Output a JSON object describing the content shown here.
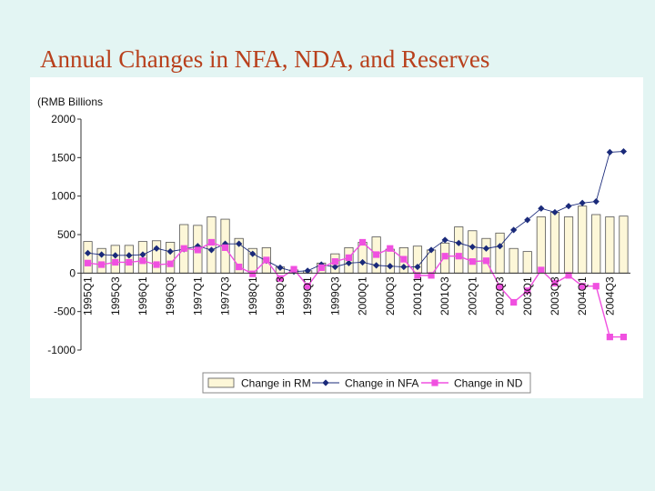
{
  "slide": {
    "title": "Annual Changes in NFA, NDA, and Reserves"
  },
  "colors": {
    "bar_fill": "#fdf7d8",
    "bar_stroke": "#555555",
    "nfa": "#1a2a7a",
    "nda": "#f050e0",
    "title": "#b8401c"
  },
  "chart_data": {
    "type": "bar",
    "unit_label": "(RMB Billions",
    "ylim": [
      -1000,
      2000
    ],
    "yticks": [
      2000,
      1500,
      1000,
      500,
      0,
      -500,
      -1000
    ],
    "categories": [
      "1995Q1",
      "1995Q2",
      "1995Q3",
      "1995Q4",
      "1996Q1",
      "1996Q2",
      "1996Q3",
      "1996Q4",
      "1997Q1",
      "1997Q2",
      "1997Q3",
      "1997Q4",
      "1998Q1",
      "1998Q2",
      "1998Q3",
      "1998Q4",
      "1999Q1",
      "1999Q2",
      "1999Q3",
      "1999Q4",
      "2000Q1",
      "2000Q2",
      "2000Q3",
      "2000Q4",
      "2001Q1",
      "2001Q2",
      "2001Q3",
      "2001Q4",
      "2002Q1",
      "2002Q2",
      "2002Q3",
      "2002Q4",
      "2003Q1",
      "2003Q2",
      "2003Q3",
      "2003Q4",
      "2004Q1",
      "2004Q2",
      "2004Q3",
      "2004Q4"
    ],
    "category_labels": [
      "1995Q1",
      "1995Q3",
      "1996Q1",
      "1996Q3",
      "1997Q1",
      "1997Q3",
      "1998Q1",
      "1998Q3",
      "1999Q1",
      "1999Q3",
      "2000Q1",
      "2000Q3",
      "2001Q1",
      "2001Q3",
      "2002Q1",
      "2002Q3",
      "2003Q1",
      "2003Q3",
      "2004Q1",
      "2004Q3"
    ],
    "series": [
      {
        "name": "Change in RM",
        "kind": "bar",
        "values": [
          410,
          320,
          360,
          360,
          410,
          420,
          400,
          630,
          620,
          730,
          700,
          450,
          320,
          330,
          80,
          40,
          30,
          130,
          250,
          330,
          400,
          470,
          310,
          330,
          350,
          300,
          390,
          600,
          550,
          450,
          520,
          320,
          280,
          730,
          790,
          730,
          870,
          760,
          730,
          740
        ]
      },
      {
        "name": "Change in NFA",
        "kind": "line",
        "values": [
          260,
          240,
          230,
          230,
          240,
          320,
          280,
          310,
          350,
          300,
          380,
          380,
          250,
          160,
          70,
          20,
          30,
          110,
          80,
          130,
          140,
          100,
          90,
          80,
          80,
          300,
          430,
          390,
          340,
          320,
          350,
          560,
          690,
          840,
          790,
          870,
          910,
          930,
          1570,
          1580
        ]
      },
      {
        "name": "Change in ND",
        "kind": "line",
        "values": [
          130,
          110,
          140,
          140,
          160,
          110,
          120,
          320,
          300,
          400,
          330,
          80,
          -10,
          170,
          -70,
          50,
          -170,
          70,
          150,
          200,
          400,
          240,
          320,
          180,
          -30,
          -30,
          220,
          220,
          150,
          160,
          -180,
          -380,
          -230,
          40,
          -130,
          -30,
          -170,
          -170,
          -830,
          -830
        ]
      }
    ],
    "legend": [
      "Change in RM",
      "Change in NFA",
      "Change in ND"
    ],
    "legend_position": "bottom"
  }
}
